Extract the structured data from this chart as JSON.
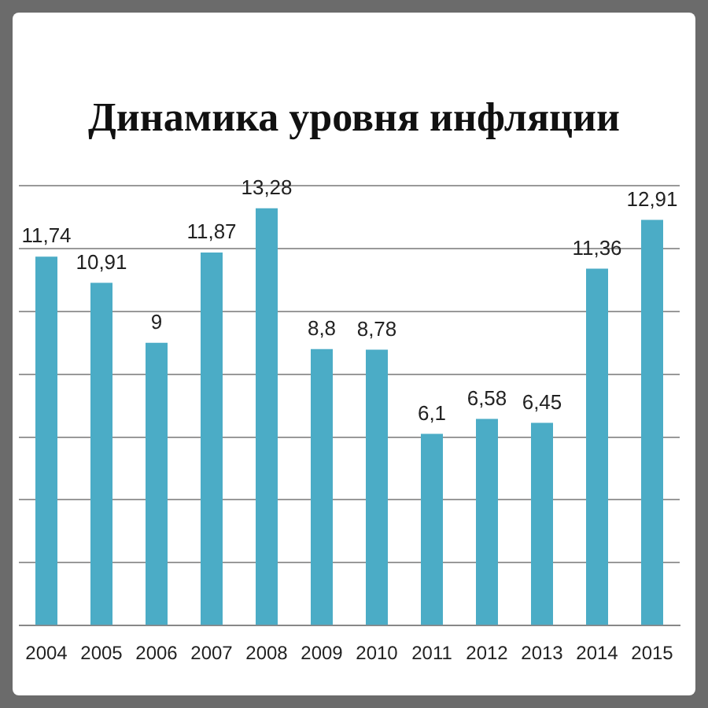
{
  "chart_data": {
    "type": "bar",
    "title": "Динамика уровня инфляции",
    "categories": [
      "2004",
      "2005",
      "2006",
      "2007",
      "2008",
      "2009",
      "2010",
      "2011",
      "2012",
      "2013",
      "2014",
      "2015"
    ],
    "values": [
      11.74,
      10.91,
      9,
      11.87,
      13.28,
      8.8,
      8.78,
      6.1,
      6.58,
      6.45,
      11.36,
      12.91
    ],
    "value_labels": [
      "11,74",
      "10,91",
      "9",
      "11,87",
      "13,28",
      "8,8",
      "8,78",
      "6,1",
      "6,58",
      "6,45",
      "11,36",
      "12,91"
    ],
    "color": "#4bacc6",
    "ylim": [
      0,
      14
    ],
    "yticks": [
      {
        "value": 0,
        "label": null
      },
      {
        "value": 2,
        "label": null
      },
      {
        "value": 4,
        "label": null
      },
      {
        "value": 6,
        "label": null
      },
      {
        "value": 8,
        "label": null
      },
      {
        "value": 10,
        "label": null
      },
      {
        "value": 12,
        "label": null
      },
      {
        "value": 14,
        "label": null
      }
    ],
    "grid": "y"
  }
}
